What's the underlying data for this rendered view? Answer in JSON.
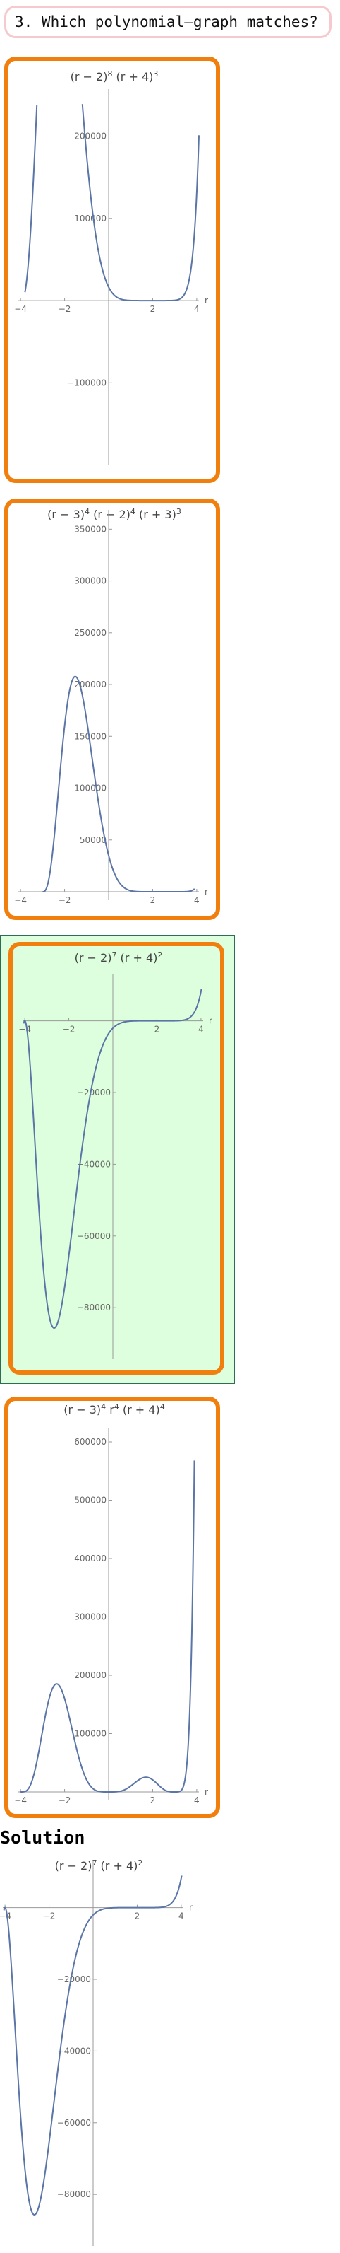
{
  "question": {
    "text": "3. Which polynomial‒graph matches?"
  },
  "options": [
    {
      "id": "a",
      "selected": false,
      "title_parts": [
        {
          "t": "(r − 2)"
        },
        {
          "t": "8",
          "sup": true
        },
        {
          "t": " (r + 4)"
        },
        {
          "t": "3",
          "sup": true
        }
      ],
      "x_var": "r",
      "x_ticks": [
        {
          "v": -4,
          "label": "−4"
        },
        {
          "v": -2,
          "label": "−2"
        },
        {
          "v": 2,
          "label": "2"
        },
        {
          "v": 4,
          "label": "4"
        }
      ],
      "y_ticks": [
        {
          "v": 200000,
          "label": "200000"
        },
        {
          "v": 100000,
          "label": "100000"
        },
        {
          "v": -100000,
          "label": "−100000"
        }
      ]
    },
    {
      "id": "b",
      "selected": false,
      "title_parts": [
        {
          "t": "(r − 3)"
        },
        {
          "t": "4",
          "sup": true
        },
        {
          "t": " (r − 2)"
        },
        {
          "t": "4",
          "sup": true
        },
        {
          "t": " (r + 3)"
        },
        {
          "t": "3",
          "sup": true
        }
      ],
      "x_var": "r",
      "x_ticks": [
        {
          "v": -4,
          "label": "−4"
        },
        {
          "v": -2,
          "label": "−2"
        },
        {
          "v": 2,
          "label": "2"
        },
        {
          "v": 4,
          "label": "4"
        }
      ],
      "y_ticks": [
        {
          "v": 350000,
          "label": "350000"
        },
        {
          "v": 300000,
          "label": "300000"
        },
        {
          "v": 250000,
          "label": "250000"
        },
        {
          "v": 200000,
          "label": "200000"
        },
        {
          "v": 150000,
          "label": "150000"
        },
        {
          "v": 100000,
          "label": "100000"
        },
        {
          "v": 50000,
          "label": "50000"
        }
      ]
    },
    {
      "id": "c",
      "selected": true,
      "title_parts": [
        {
          "t": "(r − 2)"
        },
        {
          "t": "7",
          "sup": true
        },
        {
          "t": " (r + 4)"
        },
        {
          "t": "2",
          "sup": true
        }
      ],
      "x_var": "r",
      "x_ticks": [
        {
          "v": -4,
          "label": "−4"
        },
        {
          "v": -2,
          "label": "−2"
        },
        {
          "v": 2,
          "label": "2"
        },
        {
          "v": 4,
          "label": "4"
        }
      ],
      "y_ticks": [
        {
          "v": -20000,
          "label": "−20000"
        },
        {
          "v": -40000,
          "label": "−40000"
        },
        {
          "v": -60000,
          "label": "−60000"
        },
        {
          "v": -80000,
          "label": "−80000"
        }
      ]
    },
    {
      "id": "d",
      "selected": false,
      "title_parts": [
        {
          "t": "(r − 3)"
        },
        {
          "t": "4",
          "sup": true
        },
        {
          "t": " r"
        },
        {
          "t": "4",
          "sup": true
        },
        {
          "t": " (r + 4)"
        },
        {
          "t": "4",
          "sup": true
        }
      ],
      "x_var": "r",
      "x_ticks": [
        {
          "v": -4,
          "label": "−4"
        },
        {
          "v": -2,
          "label": "−2"
        },
        {
          "v": 2,
          "label": "2"
        },
        {
          "v": 4,
          "label": "4"
        }
      ],
      "y_ticks": [
        {
          "v": 600000,
          "label": "600000"
        },
        {
          "v": 500000,
          "label": "500000"
        },
        {
          "v": 400000,
          "label": "400000"
        },
        {
          "v": 300000,
          "label": "300000"
        },
        {
          "v": 200000,
          "label": "200000"
        },
        {
          "v": 100000,
          "label": "100000"
        }
      ]
    }
  ],
  "solution": {
    "heading": "Solution",
    "title_parts": [
      {
        "t": "(r − 2)"
      },
      {
        "t": "7",
        "sup": true
      },
      {
        "t": " (r + 4)"
      },
      {
        "t": "2",
        "sup": true
      }
    ],
    "x_var": "r",
    "x_ticks": [
      {
        "v": -4,
        "label": "−4"
      },
      {
        "v": -2,
        "label": "−2"
      },
      {
        "v": 2,
        "label": "2"
      },
      {
        "v": 4,
        "label": "4"
      }
    ],
    "y_ticks": [
      {
        "v": -20000,
        "label": "−20000"
      },
      {
        "v": -40000,
        "label": "−40000"
      },
      {
        "v": -60000,
        "label": "−60000"
      },
      {
        "v": -80000,
        "label": "−80000"
      }
    ]
  }
}
